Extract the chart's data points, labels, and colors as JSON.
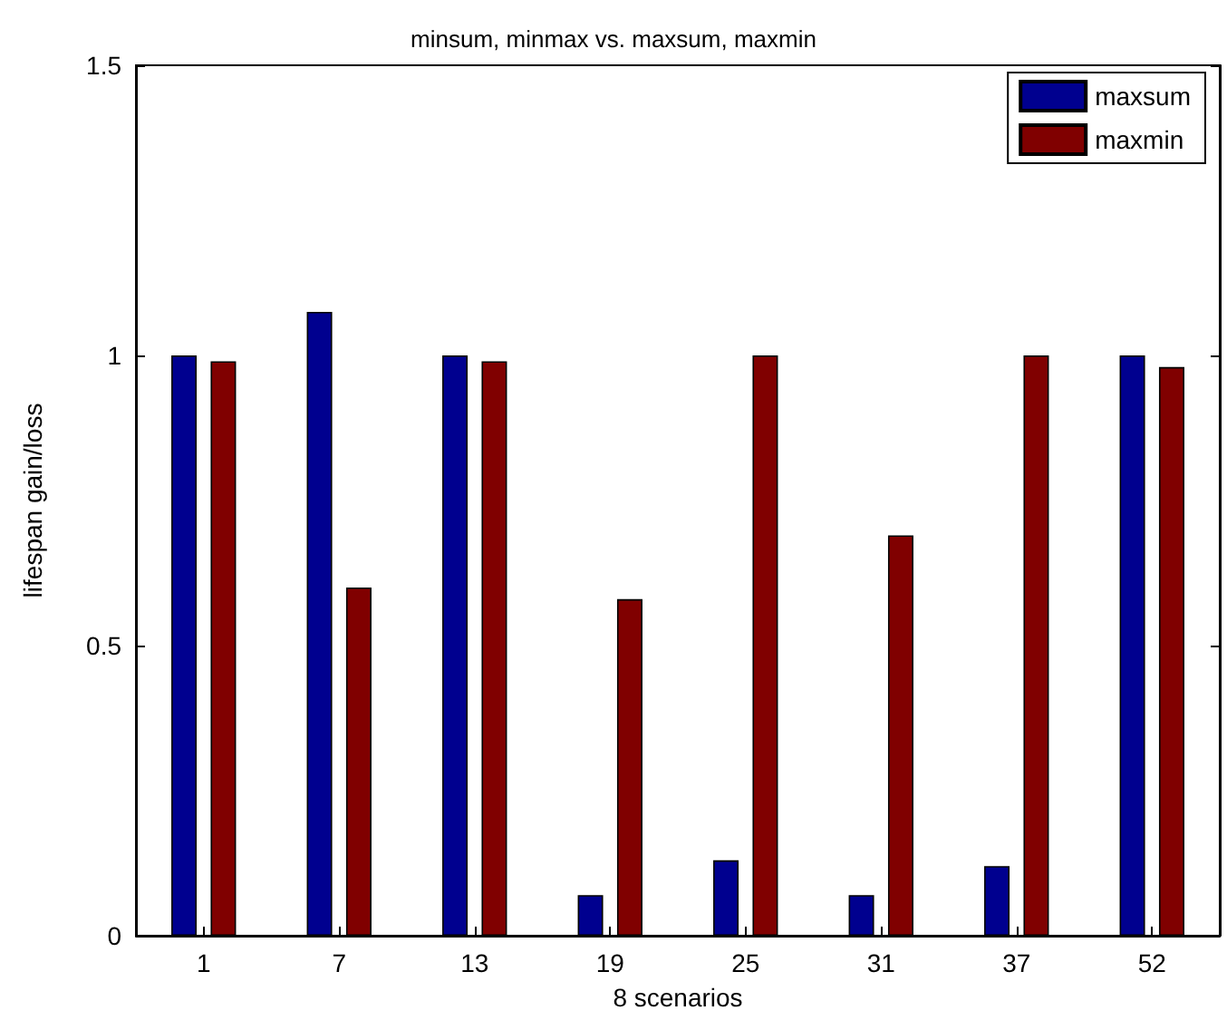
{
  "chart_data": {
    "type": "bar",
    "title": "minsum, minmax vs. maxsum, maxmin",
    "xlabel": "8 scenarios",
    "ylabel": "lifespan gain/loss",
    "categories": [
      "1",
      "7",
      "13",
      "19",
      "25",
      "31",
      "37",
      "52"
    ],
    "series": [
      {
        "name": "maxsum",
        "color": "#00008f",
        "values": [
          1.0,
          1.075,
          1.0,
          0.07,
          0.13,
          0.07,
          0.12,
          1.0
        ]
      },
      {
        "name": "maxmin",
        "color": "#800000",
        "values": [
          0.99,
          0.6,
          0.99,
          0.58,
          1.0,
          0.69,
          1.0,
          0.98
        ]
      }
    ],
    "ylim": [
      0,
      1.5
    ],
    "yticks": [
      0,
      0.5,
      1,
      1.5
    ],
    "grid": false,
    "legend": "top right"
  }
}
